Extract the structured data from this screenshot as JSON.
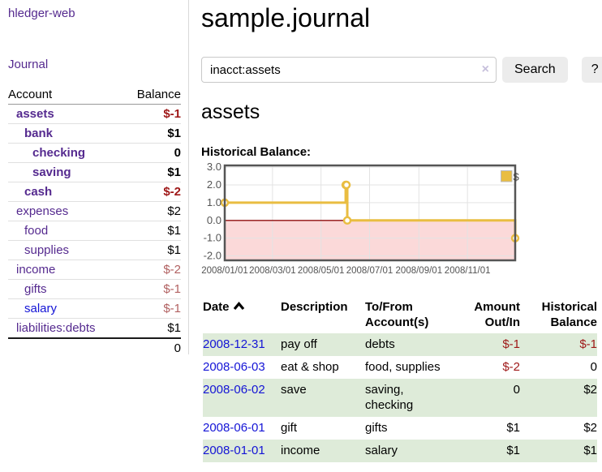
{
  "app": {
    "title": "hledger-web"
  },
  "colors": {
    "link_purple": "#552a8f",
    "link_blue": "#1414d6",
    "negative_bold": "#9e1717",
    "negative_muted": "#b16161",
    "register_negative": "#9e1717",
    "shaded_row_green": "#deebd9",
    "series_yellow": "#e9bd41",
    "negative_region_pink": "#fbd9d9",
    "zero_line_red": "#8f0d0d",
    "axis_text_gray": "#545454"
  },
  "sidebar": {
    "journal_link": "Journal",
    "accounts_table": {
      "account_header": "Account",
      "balance_header": "Balance",
      "rows": [
        {
          "name": "assets",
          "indent": 1,
          "bold": true,
          "link": "purple",
          "balance": "$-1",
          "balance_style": "neg-bold"
        },
        {
          "name": "bank",
          "indent": 2,
          "bold": true,
          "link": "purple",
          "balance": "$1",
          "balance_style": "pos"
        },
        {
          "name": "checking",
          "indent": 3,
          "bold": true,
          "link": "purple",
          "balance": "0",
          "balance_style": "pos"
        },
        {
          "name": "saving",
          "indent": 3,
          "bold": true,
          "link": "purple",
          "balance": "$1",
          "balance_style": "pos"
        },
        {
          "name": "cash",
          "indent": 2,
          "bold": true,
          "link": "purple",
          "balance": "$-2",
          "balance_style": "neg-bold"
        },
        {
          "name": "expenses",
          "indent": 1,
          "bold": false,
          "link": "purple",
          "balance": "$2",
          "balance_style": "pos"
        },
        {
          "name": "food",
          "indent": 2,
          "bold": false,
          "link": "purple",
          "balance": "$1",
          "balance_style": "pos"
        },
        {
          "name": "supplies",
          "indent": 2,
          "bold": false,
          "link": "purple",
          "balance": "$1",
          "balance_style": "pos"
        },
        {
          "name": "income",
          "indent": 1,
          "bold": false,
          "link": "purple",
          "balance": "$-2",
          "balance_style": "neg"
        },
        {
          "name": "gifts",
          "indent": 2,
          "bold": false,
          "link": "purple",
          "balance": "$-1",
          "balance_style": "neg"
        },
        {
          "name": "salary",
          "indent": 2,
          "bold": false,
          "link": "blue",
          "balance": "$-1",
          "balance_style": "neg"
        },
        {
          "name": "liabilities:debts",
          "indent": 1,
          "bold": false,
          "link": "purple",
          "balance": "$1",
          "balance_style": "pos"
        }
      ],
      "total": "0"
    }
  },
  "header": {
    "title": "sample.journal"
  },
  "search": {
    "value": "inacct:assets",
    "clear_icon": "×",
    "button_label": "Search",
    "help_label": "?"
  },
  "main": {
    "account_heading": "assets",
    "chart_label": "Historical Balance:"
  },
  "chart_data": {
    "type": "line",
    "title": "Historical Balance",
    "series": [
      {
        "name": "$",
        "color": "#e9bd41",
        "step": "after",
        "points": [
          [
            "2008-01-01",
            1
          ],
          [
            "2008-06-01",
            2
          ],
          [
            "2008-06-02",
            2
          ],
          [
            "2008-06-03",
            0
          ],
          [
            "2008-12-31",
            -1
          ]
        ]
      }
    ],
    "xlim": [
      "2008-01-01",
      "2008-12-31"
    ],
    "ylim": [
      -2.25,
      3.1
    ],
    "yticks": [
      3,
      2,
      1,
      0,
      -1,
      -2
    ],
    "ytick_labels": [
      "3.0",
      "2.0",
      "1.0",
      "0.0",
      "-1.0",
      "-2.0"
    ],
    "xticks": [
      "2008-01-01",
      "2008-03-01",
      "2008-05-01",
      "2008-07-01",
      "2008-09-01",
      "2008-11-01"
    ],
    "xtick_labels": [
      "2008/01/01",
      "2008/03/01",
      "2008/05/01",
      "2008/07/01",
      "2008/09/01",
      "2008/11/01"
    ],
    "grid": true,
    "legend_position": "top-right",
    "legend_label": "$"
  },
  "register": {
    "columns": [
      "Date",
      "Description",
      "To/From Account(s)",
      "Amount Out/In",
      "Historical Balance"
    ],
    "rows": [
      {
        "date": "2008-12-31",
        "description": "pay off",
        "accounts": "debts",
        "amount": "$-1",
        "amount_negative": true,
        "balance": "$-1",
        "balance_negative": true,
        "shaded": true
      },
      {
        "date": "2008-06-03",
        "description": "eat & shop",
        "accounts": "food, supplies",
        "amount": "$-2",
        "amount_negative": true,
        "balance": "0",
        "balance_negative": false,
        "shaded": false
      },
      {
        "date": "2008-06-02",
        "description": "save",
        "accounts": "saving, checking",
        "amount": "0",
        "amount_negative": false,
        "balance": "$2",
        "balance_negative": false,
        "shaded": true
      },
      {
        "date": "2008-06-01",
        "description": "gift",
        "accounts": "gifts",
        "amount": "$1",
        "amount_negative": false,
        "balance": "$2",
        "balance_negative": false,
        "shaded": false
      },
      {
        "date": "2008-01-01",
        "description": "income",
        "accounts": "salary",
        "amount": "$1",
        "amount_negative": false,
        "balance": "$1",
        "balance_negative": false,
        "shaded": true
      }
    ]
  }
}
